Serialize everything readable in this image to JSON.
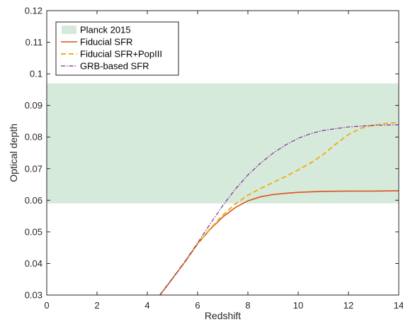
{
  "chart_data": {
    "type": "line",
    "xlabel": "Redshift",
    "ylabel": "Optical depth",
    "xlim": [
      0,
      14
    ],
    "ylim": [
      0.03,
      0.12
    ],
    "xticks": [
      0,
      2,
      4,
      6,
      8,
      10,
      12,
      14
    ],
    "yticks": [
      0.03,
      0.04,
      0.05,
      0.06,
      0.07,
      0.08,
      0.09,
      0.1,
      0.11,
      0.12
    ],
    "xtick_labels": [
      "0",
      "2",
      "4",
      "6",
      "8",
      "10",
      "12",
      "14"
    ],
    "ytick_labels": [
      "0.03",
      "0.04",
      "0.05",
      "0.06",
      "0.07",
      "0.08",
      "0.09",
      "0.1",
      "0.11",
      "0.12"
    ],
    "grid": false,
    "legend_position": "top-left",
    "band": {
      "name": "Planck 2015",
      "y_low": 0.059,
      "y_high": 0.097,
      "color": "#d6eadb"
    },
    "series": [
      {
        "name": "Fiducial SFR",
        "color": "#d95319",
        "style": "solid",
        "points": [
          [
            4.5,
            0.03
          ],
          [
            5.0,
            0.0352
          ],
          [
            5.5,
            0.0405
          ],
          [
            6.0,
            0.0462
          ],
          [
            6.5,
            0.0508
          ],
          [
            7.0,
            0.0547
          ],
          [
            7.5,
            0.0577
          ],
          [
            8.0,
            0.0598
          ],
          [
            8.5,
            0.0611
          ],
          [
            9.0,
            0.0618
          ],
          [
            9.5,
            0.0622
          ],
          [
            10.0,
            0.0625
          ],
          [
            11.0,
            0.0628
          ],
          [
            12.0,
            0.0629
          ],
          [
            13.0,
            0.0629
          ],
          [
            14.0,
            0.063
          ]
        ]
      },
      {
        "name": "Fiducial SFR+PopIII",
        "color": "#edb120",
        "style": "dashed",
        "points": [
          [
            4.5,
            0.03
          ],
          [
            5.0,
            0.0352
          ],
          [
            5.5,
            0.0405
          ],
          [
            6.0,
            0.0462
          ],
          [
            6.5,
            0.051
          ],
          [
            7.0,
            0.0553
          ],
          [
            7.5,
            0.0588
          ],
          [
            8.0,
            0.0616
          ],
          [
            8.5,
            0.0637
          ],
          [
            9.0,
            0.0656
          ],
          [
            9.5,
            0.0675
          ],
          [
            10.0,
            0.0696
          ],
          [
            10.5,
            0.0718
          ],
          [
            11.0,
            0.0745
          ],
          [
            11.5,
            0.0778
          ],
          [
            12.0,
            0.0808
          ],
          [
            12.5,
            0.0828
          ],
          [
            13.0,
            0.0838
          ],
          [
            13.5,
            0.0843
          ],
          [
            14.0,
            0.0847
          ]
        ]
      },
      {
        "name": "GRB-based SFR",
        "color": "#7e2f8e",
        "style": "dashdot",
        "points": [
          [
            4.5,
            0.03
          ],
          [
            5.0,
            0.0353
          ],
          [
            5.5,
            0.0407
          ],
          [
            6.0,
            0.0465
          ],
          [
            6.5,
            0.0525
          ],
          [
            7.0,
            0.0583
          ],
          [
            7.5,
            0.0635
          ],
          [
            8.0,
            0.068
          ],
          [
            8.5,
            0.0717
          ],
          [
            9.0,
            0.0749
          ],
          [
            9.5,
            0.0775
          ],
          [
            10.0,
            0.0796
          ],
          [
            10.5,
            0.0811
          ],
          [
            11.0,
            0.0821
          ],
          [
            12.0,
            0.0832
          ],
          [
            13.0,
            0.0837
          ],
          [
            14.0,
            0.0839
          ]
        ]
      }
    ]
  }
}
